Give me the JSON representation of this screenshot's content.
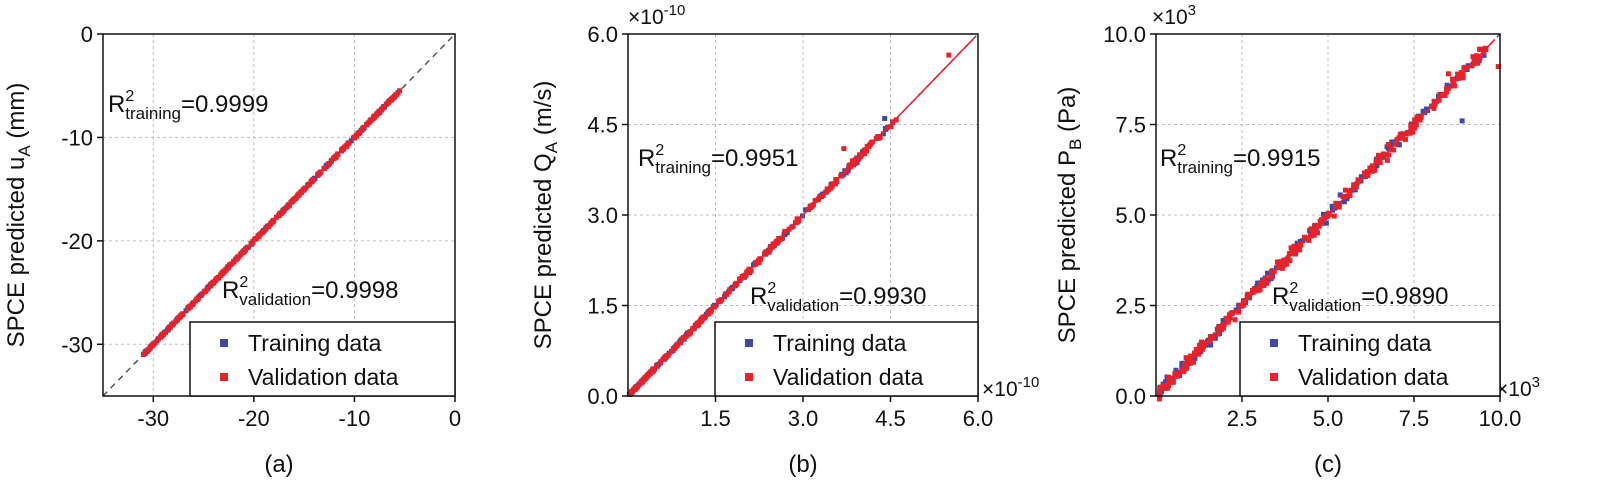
{
  "colors": {
    "training": "#3f48a8",
    "validation": "#e8222a",
    "fit_line": "#e8222a",
    "diagonal": "#555555",
    "grid": "#bdbdbd"
  },
  "chart_data": [
    {
      "type": "scatter",
      "id": "a",
      "caption": "(a)",
      "ylabel": "SPCE predicted u",
      "ylabel_sub": "A",
      "ylabel_unit": " (mm)",
      "xlim": [
        -35,
        0
      ],
      "ylim": [
        -35,
        0
      ],
      "x_ticks": [
        -30,
        -20,
        -10,
        0
      ],
      "y_ticks": [
        -30,
        -20,
        -10,
        0
      ],
      "x_tick_labels": [
        "-30",
        "-20",
        "-10",
        "0"
      ],
      "y_tick_labels": [
        "-30",
        "-20",
        "-10",
        "0"
      ],
      "x_multiplier_base": "",
      "x_multiplier_exp": "",
      "y_multiplier_base": "",
      "y_multiplier_exp": "",
      "r2_training_label": "R",
      "r2_training_sup": "2",
      "r2_training_sub": "training",
      "r2_training_value": "=0.9999",
      "r2_validation_label": "R",
      "r2_validation_sup": "2",
      "r2_validation_sub": "validation",
      "r2_validation_value": "=0.9998",
      "legend": [
        "Training data",
        "Validation data"
      ],
      "data_range": [
        -31,
        -5.5
      ],
      "noise": 0.12,
      "n_points": 420,
      "fit_line": false,
      "outliers": []
    },
    {
      "type": "scatter",
      "id": "b",
      "caption": "(b)",
      "ylabel": "SPCE predicted Q",
      "ylabel_sub": "A",
      "ylabel_unit": " (m/s)",
      "xlim": [
        0,
        6.0
      ],
      "ylim": [
        0,
        6.0
      ],
      "x_ticks": [
        1.5,
        3.0,
        4.5,
        6.0
      ],
      "y_ticks": [
        0.0,
        1.5,
        3.0,
        4.5,
        6.0
      ],
      "x_tick_labels": [
        "1.5",
        "3.0",
        "4.5",
        "6.0"
      ],
      "y_tick_labels": [
        "0.0",
        "1.5",
        "3.0",
        "4.5",
        "6.0"
      ],
      "x_multiplier_base": "×10",
      "x_multiplier_exp": "-10",
      "y_multiplier_base": "×10",
      "y_multiplier_exp": "-10",
      "r2_training_label": "R",
      "r2_training_sup": "2",
      "r2_training_sub": "training",
      "r2_training_value": "=0.9951",
      "r2_validation_label": "R",
      "r2_validation_sup": "2",
      "r2_validation_sub": "validation",
      "r2_validation_value": "=0.9930",
      "legend": [
        "Training data",
        "Validation data"
      ],
      "data_range": [
        0.02,
        4.6
      ],
      "noise": 0.07,
      "n_points": 380,
      "fit_line": true,
      "outliers": [
        [
          5.5,
          5.65
        ],
        [
          4.4,
          4.6
        ],
        [
          3.7,
          4.1
        ]
      ]
    },
    {
      "type": "scatter",
      "id": "c",
      "caption": "(c)",
      "ylabel": "SPCE predicted P",
      "ylabel_sub": "B",
      "ylabel_unit": " (Pa)",
      "xlim": [
        0,
        10.0
      ],
      "ylim": [
        0,
        10.0
      ],
      "x_ticks": [
        2.5,
        5.0,
        7.5,
        10.0
      ],
      "y_ticks": [
        0.0,
        2.5,
        5.0,
        7.5,
        10.0
      ],
      "x_tick_labels": [
        "2.5",
        "5.0",
        "7.5",
        "10.0"
      ],
      "y_tick_labels": [
        "0.0",
        "2.5",
        "5.0",
        "7.5",
        "10.0"
      ],
      "x_multiplier_base": "×10",
      "x_multiplier_exp": "3",
      "y_multiplier_base": "×10",
      "y_multiplier_exp": "3",
      "r2_training_label": "R",
      "r2_training_sup": "2",
      "r2_training_sub": "training",
      "r2_training_value": "=0.9915",
      "r2_validation_label": "R",
      "r2_validation_sup": "2",
      "r2_validation_sub": "validation",
      "r2_validation_value": "=0.9890",
      "legend": [
        "Training data",
        "Validation data"
      ],
      "data_range": [
        0.1,
        9.6
      ],
      "noise": 0.28,
      "n_points": 440,
      "fit_line": true,
      "outliers": [
        [
          9.95,
          9.1
        ],
        [
          8.9,
          7.6
        ],
        [
          8.5,
          8.9
        ]
      ]
    }
  ]
}
